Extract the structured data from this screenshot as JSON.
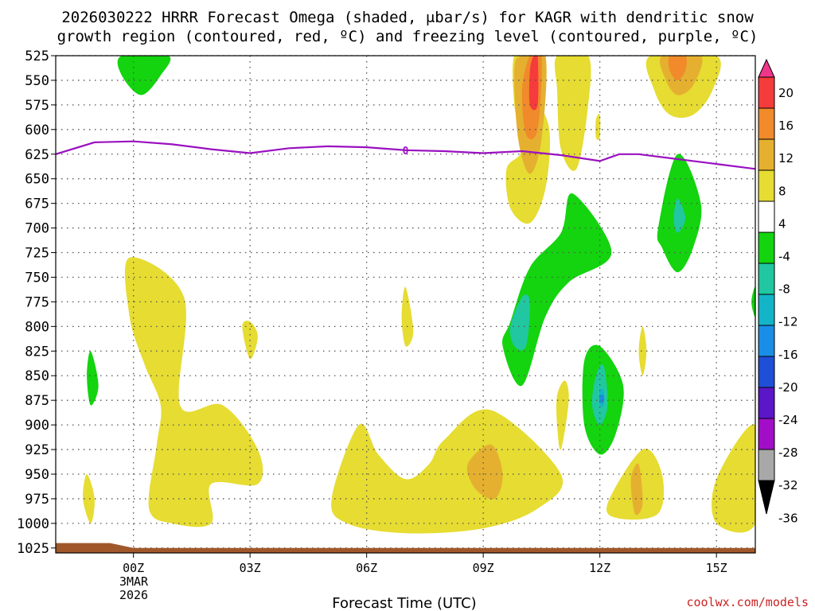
{
  "chart_data": {
    "type": "time-height contour",
    "title_line1": "2026030222 HRRR Forecast Omega (shaded, μbar/s) for KAGR with dendritic snow",
    "title_line2": "growth region (contoured, red, ºC) and freezing level (contoured, purple, ºC)",
    "xlabel": "Forecast Time (UTC)",
    "credit": "coolwx.com/models",
    "date_label_line1": "3MAR",
    "date_label_line2": "2026",
    "x_range_hours": [
      -2,
      16
    ],
    "x_ticks": [
      {
        "hour": 0,
        "label": "00Z"
      },
      {
        "hour": 3,
        "label": "03Z"
      },
      {
        "hour": 6,
        "label": "06Z"
      },
      {
        "hour": 9,
        "label": "09Z"
      },
      {
        "hour": 12,
        "label": "12Z"
      },
      {
        "hour": 15,
        "label": "15Z"
      }
    ],
    "y_ticks_mb": [
      525,
      550,
      575,
      600,
      625,
      650,
      675,
      700,
      725,
      750,
      775,
      800,
      825,
      850,
      875,
      900,
      925,
      950,
      975,
      1000,
      1025
    ],
    "colorbar": {
      "labels": [
        "20",
        "16",
        "12",
        "8",
        "4",
        "-4",
        "-8",
        "-12",
        "-16",
        "-20",
        "-24",
        "-28",
        "-32",
        "-36"
      ],
      "colors": [
        "#f0368a",
        "#f53b3b",
        "#f08a2a",
        "#e5b030",
        "#e6dc32",
        "#ffffff",
        "#13d40e",
        "#21c7a0",
        "#14b4c8",
        "#1a8ee6",
        "#1f4fd6",
        "#5a16c8",
        "#a20ec8",
        "#a8a8a8",
        "#000000"
      ]
    },
    "omega_regions": [
      {
        "level": "4 to 8",
        "color": "#e6dc32",
        "points": [
          [
            10.0,
            620
          ],
          [
            9.8,
            575
          ],
          [
            9.8,
            525
          ],
          [
            10.3,
            525
          ],
          [
            10.3,
            560
          ],
          [
            10.7,
            600
          ],
          [
            10.6,
            660
          ],
          [
            10.2,
            695
          ],
          [
            9.7,
            680
          ],
          [
            9.6,
            640
          ]
        ]
      },
      {
        "level": "4 to 8",
        "color": "#e6dc32",
        "points": [
          [
            10.9,
            525
          ],
          [
            11.7,
            525
          ],
          [
            11.7,
            575
          ],
          [
            11.4,
            640
          ],
          [
            11.0,
            620
          ],
          [
            10.9,
            560
          ]
        ]
      },
      {
        "level": "4 to 8",
        "color": "#e6dc32",
        "points": [
          [
            12.0,
            585
          ],
          [
            12.0,
            608
          ],
          [
            11.9,
            608
          ],
          [
            11.9,
            590
          ]
        ]
      },
      {
        "level": "4 to 8",
        "color": "#e6dc32",
        "points": [
          [
            13.3,
            525
          ],
          [
            15.0,
            525
          ],
          [
            14.9,
            560
          ],
          [
            14.4,
            585
          ],
          [
            13.8,
            585
          ],
          [
            13.4,
            560
          ]
        ]
      },
      {
        "level": "4 to 8",
        "color": "#e6dc32",
        "points": [
          [
            -0.1,
            730
          ],
          [
            1.3,
            770
          ],
          [
            1.2,
            880
          ],
          [
            2.3,
            880
          ],
          [
            3.2,
            925
          ],
          [
            3.2,
            960
          ],
          [
            2.0,
            960
          ],
          [
            2.0,
            1000
          ],
          [
            1.0,
            1000
          ],
          [
            0.4,
            985
          ],
          [
            0.6,
            920
          ],
          [
            0.7,
            880
          ],
          [
            0.3,
            840
          ],
          [
            -0.1,
            790
          ]
        ]
      },
      {
        "level": "4 to 8",
        "color": "#e6dc32",
        "points": [
          [
            3.0,
            795
          ],
          [
            3.2,
            810
          ],
          [
            3.0,
            833
          ],
          [
            2.8,
            800
          ]
        ]
      },
      {
        "level": "4 to 8",
        "color": "#e6dc32",
        "points": [
          [
            7.0,
            760
          ],
          [
            7.2,
            805
          ],
          [
            7.0,
            820
          ],
          [
            6.9,
            790
          ]
        ]
      },
      {
        "level": "4 to 8",
        "color": "#e6dc32",
        "points": [
          [
            -1.2,
            950
          ],
          [
            -1.0,
            975
          ],
          [
            -1.1,
            1000
          ],
          [
            -1.3,
            975
          ]
        ]
      },
      {
        "level": "4 to 8",
        "color": "#e6dc32",
        "points": [
          [
            5.1,
            975
          ],
          [
            5.8,
            900
          ],
          [
            6.3,
            930
          ],
          [
            7.0,
            955
          ],
          [
            7.6,
            940
          ],
          [
            8.0,
            915
          ],
          [
            9.2,
            885
          ],
          [
            11.0,
            950
          ],
          [
            10.4,
            985
          ],
          [
            9.0,
            1005
          ],
          [
            7.0,
            1010
          ],
          [
            5.5,
            1000
          ]
        ]
      },
      {
        "level": "4 to 8",
        "color": "#e6dc32",
        "points": [
          [
            11.1,
            855
          ],
          [
            11.2,
            875
          ],
          [
            11.0,
            925
          ],
          [
            10.9,
            900
          ],
          [
            10.9,
            870
          ]
        ]
      },
      {
        "level": "4 to 8",
        "color": "#e6dc32",
        "points": [
          [
            13.1,
            800
          ],
          [
            13.2,
            825
          ],
          [
            13.1,
            850
          ],
          [
            13.0,
            825
          ]
        ]
      },
      {
        "level": "4 to 8",
        "color": "#e6dc32",
        "points": [
          [
            12.2,
            980
          ],
          [
            13.1,
            925
          ],
          [
            13.6,
            950
          ],
          [
            13.5,
            990
          ],
          [
            12.5,
            995
          ]
        ]
      },
      {
        "level": "4 to 8",
        "color": "#e6dc32",
        "points": [
          [
            15.0,
            955
          ],
          [
            16.0,
            900
          ],
          [
            16.0,
            1000
          ],
          [
            15.0,
            1000
          ]
        ]
      },
      {
        "level": "8 to 12",
        "color": "#e5b030",
        "points": [
          [
            9.8,
            540
          ],
          [
            10.0,
            525
          ],
          [
            10.6,
            525
          ],
          [
            10.5,
            610
          ],
          [
            10.2,
            645
          ],
          [
            9.9,
            610
          ]
        ]
      },
      {
        "level": "8 to 12",
        "color": "#e5b030",
        "points": [
          [
            13.6,
            525
          ],
          [
            14.6,
            525
          ],
          [
            14.4,
            555
          ],
          [
            14.0,
            565
          ],
          [
            13.7,
            550
          ]
        ]
      },
      {
        "level": "8 to 12",
        "color": "#e5b030",
        "points": [
          [
            8.6,
            940
          ],
          [
            9.2,
            920
          ],
          [
            9.5,
            950
          ],
          [
            9.3,
            975
          ],
          [
            8.8,
            965
          ]
        ]
      },
      {
        "level": "8 to 12",
        "color": "#e5b030",
        "points": [
          [
            12.8,
            955
          ],
          [
            13.0,
            940
          ],
          [
            13.1,
            980
          ],
          [
            12.9,
            990
          ]
        ]
      },
      {
        "level": "12 to 16",
        "color": "#f08a2a",
        "points": [
          [
            10.2,
            525
          ],
          [
            10.5,
            525
          ],
          [
            10.4,
            600
          ],
          [
            10.1,
            605
          ],
          [
            10.0,
            560
          ]
        ]
      },
      {
        "level": "12 to 16",
        "color": "#f08a2a",
        "points": [
          [
            13.8,
            525
          ],
          [
            14.2,
            525
          ],
          [
            14.2,
            540
          ],
          [
            14.0,
            550
          ],
          [
            13.8,
            540
          ]
        ]
      },
      {
        "level": "16 to 20",
        "color": "#f53b3b",
        "points": [
          [
            10.3,
            525
          ],
          [
            10.4,
            525
          ],
          [
            10.4,
            575
          ],
          [
            10.2,
            575
          ],
          [
            10.2,
            540
          ]
        ]
      },
      {
        "level": "-8 to -4",
        "color": "#13d40e",
        "points": [
          [
            -0.3,
            525
          ],
          [
            0.9,
            525
          ],
          [
            0.7,
            545
          ],
          [
            0.2,
            565
          ],
          [
            -0.3,
            545
          ]
        ]
      },
      {
        "level": "-8 to -4",
        "color": "#13d40e",
        "points": [
          [
            9.7,
            795
          ],
          [
            10.2,
            740
          ],
          [
            11.0,
            705
          ],
          [
            11.3,
            665
          ],
          [
            12.3,
            725
          ],
          [
            11.2,
            755
          ],
          [
            10.6,
            790
          ],
          [
            10.0,
            860
          ],
          [
            9.5,
            820
          ]
        ]
      },
      {
        "level": "-8 to -4",
        "color": "#13d40e",
        "points": [
          [
            13.5,
            700
          ],
          [
            14.0,
            625
          ],
          [
            14.6,
            675
          ],
          [
            14.4,
            720
          ],
          [
            14.0,
            745
          ],
          [
            13.6,
            720
          ]
        ]
      },
      {
        "level": "-8 to -4",
        "color": "#13d40e",
        "points": [
          [
            11.6,
            835
          ],
          [
            12.0,
            820
          ],
          [
            12.6,
            860
          ],
          [
            12.4,
            910
          ],
          [
            12.0,
            930
          ],
          [
            11.6,
            900
          ]
        ]
      },
      {
        "level": "-8 to -4",
        "color": "#13d40e",
        "points": [
          [
            -1.1,
            825
          ],
          [
            -0.9,
            860
          ],
          [
            -1.1,
            880
          ],
          [
            -1.2,
            850
          ]
        ]
      },
      {
        "level": "-8 to -4",
        "color": "#13d40e",
        "points": [
          [
            16.0,
            760
          ],
          [
            16.0,
            790
          ],
          [
            15.9,
            775
          ]
        ]
      },
      {
        "level": "-12 to -8",
        "color": "#21c7a0",
        "points": [
          [
            9.7,
            800
          ],
          [
            10.0,
            770
          ],
          [
            10.2,
            775
          ],
          [
            10.1,
            820
          ],
          [
            9.8,
            820
          ]
        ]
      },
      {
        "level": "-12 to -8",
        "color": "#21c7a0",
        "points": [
          [
            14.0,
            670
          ],
          [
            14.2,
            690
          ],
          [
            14.0,
            705
          ],
          [
            13.9,
            690
          ]
        ]
      },
      {
        "level": "-12 to -8",
        "color": "#21c7a0",
        "points": [
          [
            11.9,
            850
          ],
          [
            12.1,
            840
          ],
          [
            12.2,
            880
          ],
          [
            12.0,
            900
          ],
          [
            11.8,
            880
          ]
        ]
      },
      {
        "level": "-16 to -12",
        "color": "#14b4c8",
        "points": [
          [
            12.0,
            865
          ],
          [
            12.1,
            865
          ],
          [
            12.1,
            880
          ],
          [
            12.0,
            880
          ]
        ]
      },
      {
        "level": "-20 to -16",
        "color": "#1a8ee6",
        "points": [
          [
            12.0,
            870
          ],
          [
            12.1,
            870
          ],
          [
            12.1,
            877
          ],
          [
            12.0,
            877
          ]
        ]
      }
    ],
    "freezing_level": {
      "label": "0",
      "color": "#9a10c0",
      "points": [
        [
          -2.0,
          625
        ],
        [
          -1.0,
          613
        ],
        [
          0.0,
          612
        ],
        [
          1.0,
          615
        ],
        [
          2.0,
          620
        ],
        [
          3.0,
          624
        ],
        [
          4.0,
          619
        ],
        [
          5.0,
          617
        ],
        [
          6.0,
          618
        ],
        [
          7.0,
          621
        ],
        [
          8.0,
          622
        ],
        [
          9.0,
          624
        ],
        [
          10.0,
          622
        ],
        [
          11.0,
          626
        ],
        [
          12.0,
          632
        ],
        [
          12.5,
          625
        ],
        [
          13.0,
          625
        ],
        [
          14.0,
          630
        ],
        [
          15.0,
          635
        ],
        [
          16.0,
          640
        ]
      ]
    },
    "terrain": {
      "color": "#a0582a",
      "points": [
        [
          -2.0,
          1020
        ],
        [
          -0.6,
          1020
        ],
        [
          0.0,
          1025
        ],
        [
          16.0,
          1025
        ]
      ]
    }
  }
}
